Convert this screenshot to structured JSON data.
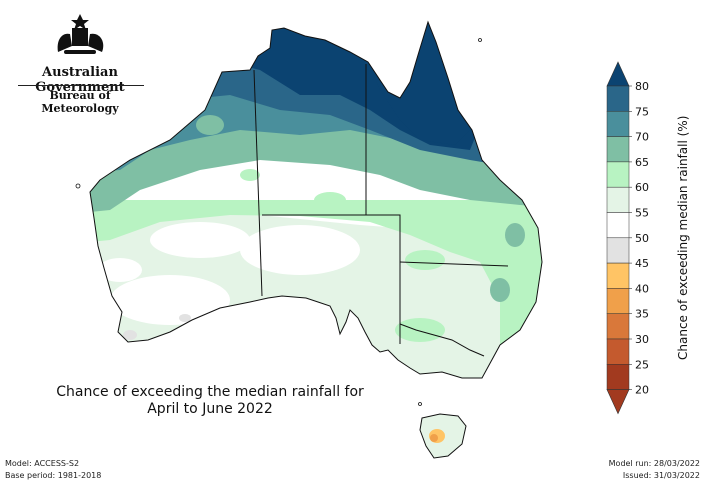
{
  "header": {
    "government": "Australian Government",
    "bureau": "Bureau of Meteorology"
  },
  "caption": {
    "line1": "Chance of exceeding the median rainfall for",
    "line2": "April to June 2022"
  },
  "legend": {
    "title": "Chance of exceeding median rainfall (%)",
    "ticks": [
      "80",
      "75",
      "70",
      "65",
      "60",
      "55",
      "50",
      "45",
      "40",
      "35",
      "30",
      "25",
      "20"
    ],
    "colors": {
      "80": "#0b4371",
      "75": "#2a6689",
      "70": "#4a8f9c",
      "65": "#7fbfa4",
      "60": "#b8f3c2",
      "55": "#e4f4e6",
      "50": "#ffffff",
      "45": "#e2e2e2",
      "40": "#ffc465",
      "35": "#f0a04a",
      "30": "#d9783a",
      "25": "#c45a2e",
      "20": "#a23a1f"
    }
  },
  "footer": {
    "model": "Model: ACCESS-S2",
    "base_period": "Base period: 1981-2018",
    "model_run": "Model run: 28/03/2022",
    "issued": "Issued: 31/03/2022"
  }
}
